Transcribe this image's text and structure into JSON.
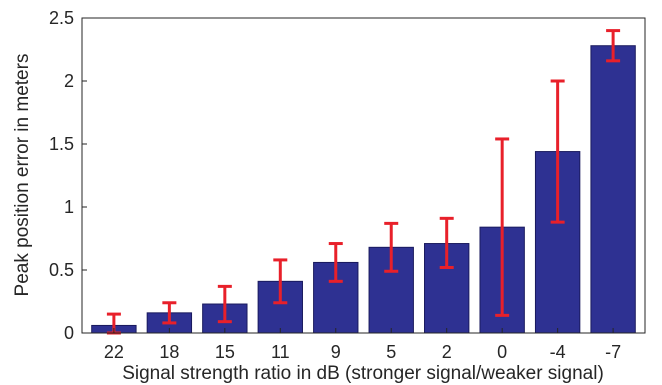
{
  "chart_data": {
    "type": "bar",
    "title": "",
    "xlabel": "Signal strength ratio in dB (stronger signal/weaker signal)",
    "ylabel": "Peak  position error in meters",
    "categories": [
      "22",
      "18",
      "15",
      "11",
      "9",
      "5",
      "2",
      "0",
      "-4",
      "-7"
    ],
    "values": [
      0.06,
      0.16,
      0.23,
      0.41,
      0.56,
      0.68,
      0.71,
      0.84,
      1.44,
      2.28
    ],
    "error_low": [
      0.0,
      0.08,
      0.09,
      0.24,
      0.41,
      0.49,
      0.52,
      0.14,
      0.88,
      2.16
    ],
    "error_high": [
      0.15,
      0.24,
      0.37,
      0.58,
      0.71,
      0.87,
      0.91,
      1.54,
      2.0,
      2.4
    ],
    "ylim": [
      0,
      2.5
    ],
    "yticks": [
      "0",
      "0.5",
      "1",
      "1.5",
      "2",
      "2.5"
    ],
    "grid": false,
    "legend": "none",
    "colors": {
      "bar": "#2e3192",
      "bar_edge": "#1a1a5e",
      "error": "#e8202a",
      "axis": "#262626"
    }
  }
}
